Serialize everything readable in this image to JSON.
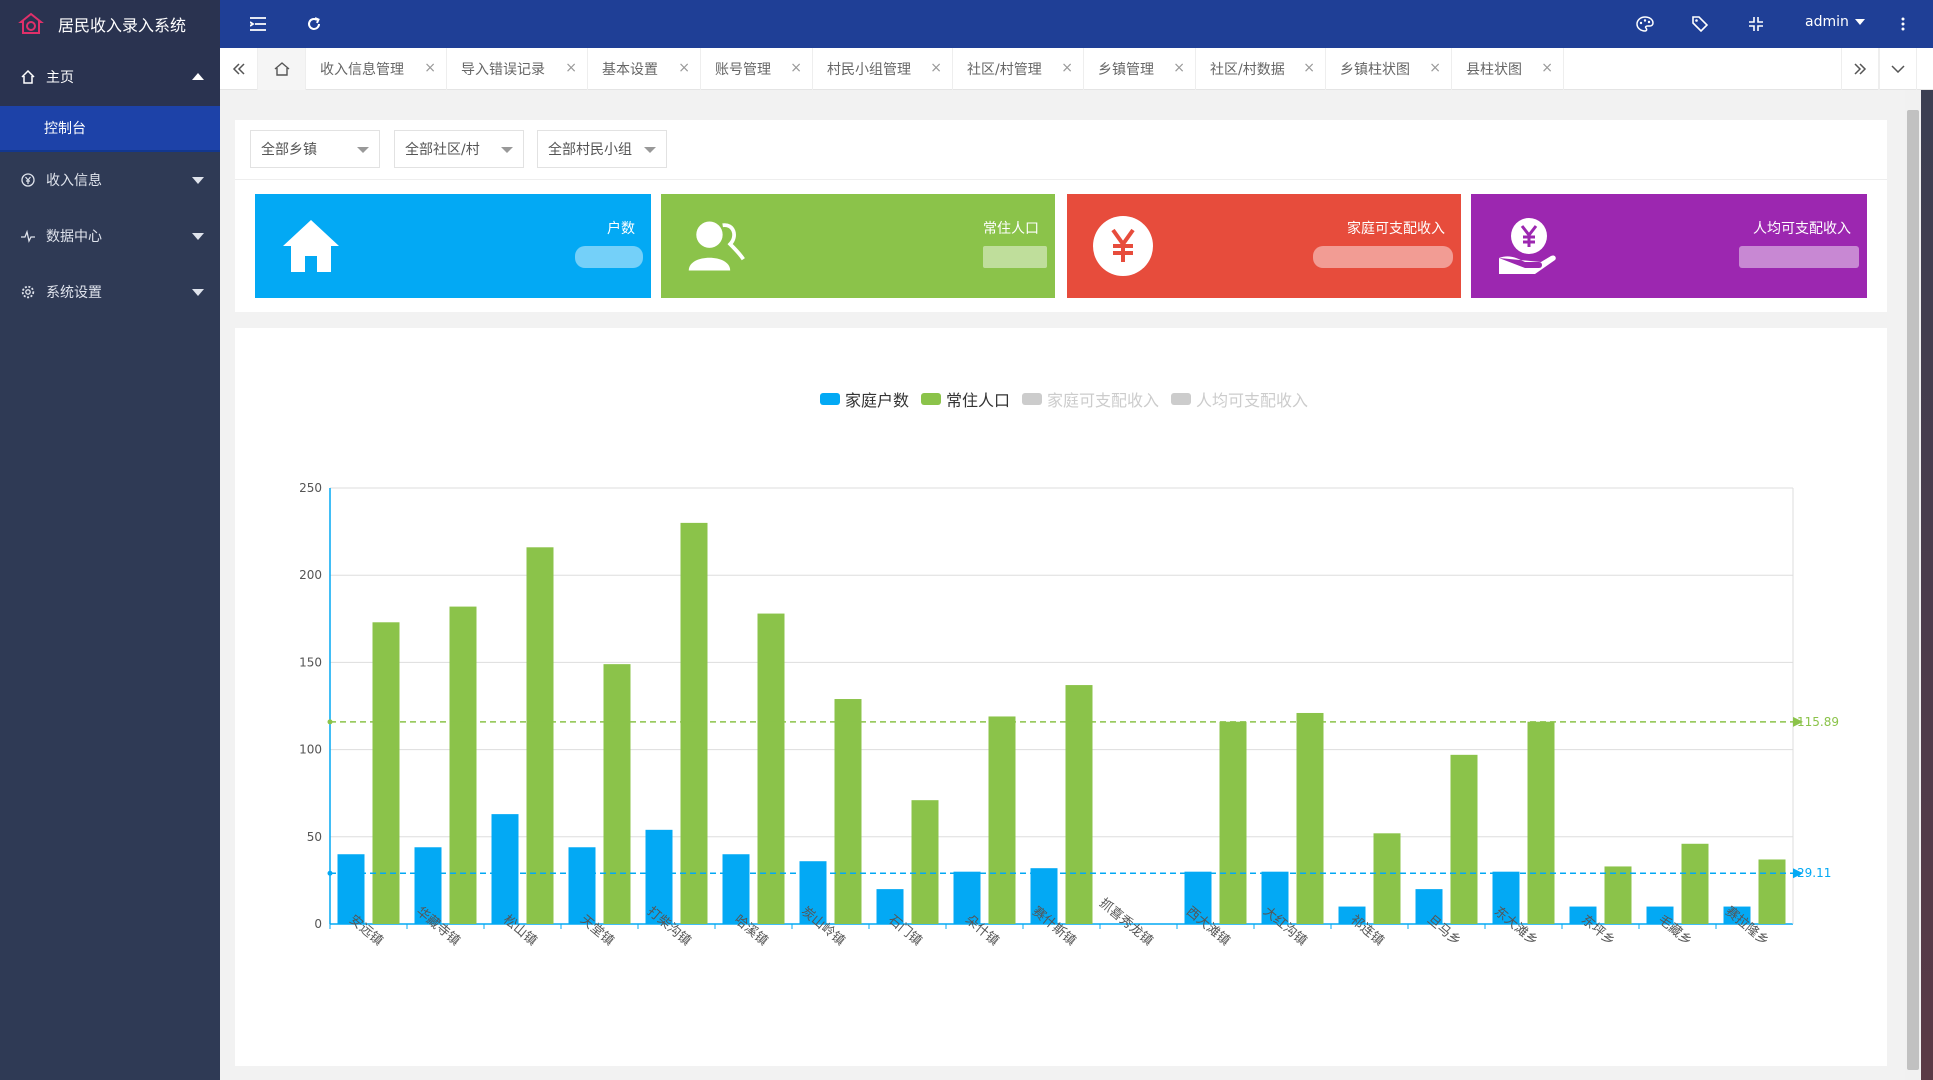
{
  "app": {
    "title": "居民收入录入系统"
  },
  "sidebar": {
    "items": [
      {
        "label": "主页",
        "icon": "home-icon",
        "expanded": true
      },
      {
        "label": "收入信息",
        "icon": "yen-circle-icon",
        "expanded": false
      },
      {
        "label": "数据中心",
        "icon": "pulse-icon",
        "expanded": false
      },
      {
        "label": "系统设置",
        "icon": "gear-icon",
        "expanded": false
      }
    ],
    "active_sub": "控制台"
  },
  "topbar": {
    "user": "admin"
  },
  "tabs": [
    "收入信息管理",
    "导入错误记录",
    "基本设置",
    "账号管理",
    "村民小组管理",
    "社区/村管理",
    "乡镇管理",
    "社区/村数据",
    "乡镇柱状图",
    "县柱状图"
  ],
  "filters": [
    {
      "value": "全部乡镇"
    },
    {
      "value": "全部社区/村"
    },
    {
      "value": "全部村民小组"
    }
  ],
  "cards": [
    {
      "label": "户数",
      "color": "#03a9f4",
      "icon": "house-icon"
    },
    {
      "label": "常住人口",
      "color": "#8bc34a",
      "icon": "users-icon"
    },
    {
      "label": "家庭可支配收入",
      "color": "#e74c3c",
      "icon": "yen-icon"
    },
    {
      "label": "人均可支配收入",
      "color": "#9c27b0",
      "icon": "yen-hand-icon"
    }
  ],
  "chart_data": {
    "type": "bar",
    "categories": [
      "安远镇",
      "华藏寺镇",
      "松山镇",
      "天堂镇",
      "打柴沟镇",
      "哈溪镇",
      "炭山岭镇",
      "石门镇",
      "朵什镇",
      "赛什斯镇",
      "抓喜秀龙镇",
      "西大滩镇",
      "大红沟镇",
      "祁连镇",
      "旦马乡",
      "东大滩乡",
      "东坪乡",
      "毛藏乡",
      "赛拉隆乡"
    ],
    "series": [
      {
        "name": "家庭户数",
        "color": "#03a9f4",
        "values": [
          40,
          44,
          63,
          44,
          54,
          40,
          36,
          20,
          30,
          32,
          0,
          30,
          30,
          10,
          20,
          30,
          10,
          10,
          10
        ],
        "mean": 29.11
      },
      {
        "name": "常住人口",
        "color": "#8bc34a",
        "values": [
          173,
          182,
          216,
          149,
          230,
          178,
          129,
          71,
          119,
          137,
          0,
          116,
          121,
          52,
          97,
          116,
          33,
          46,
          37
        ],
        "mean": 115.89
      }
    ],
    "legend": [
      {
        "name": "家庭户数",
        "color": "#03a9f4",
        "active": true
      },
      {
        "name": "常住人口",
        "color": "#8bc34a",
        "active": true
      },
      {
        "name": "家庭可支配收入",
        "color": "#cccccc",
        "active": false
      },
      {
        "name": "人均可支配收入",
        "color": "#cccccc",
        "active": false
      }
    ],
    "mean_labels": [
      "115.89",
      "29.11"
    ],
    "ylim": [
      0,
      250
    ],
    "yticks": [
      0,
      50,
      100,
      150,
      200,
      250
    ],
    "grid": true,
    "legend_position": "top-center"
  }
}
